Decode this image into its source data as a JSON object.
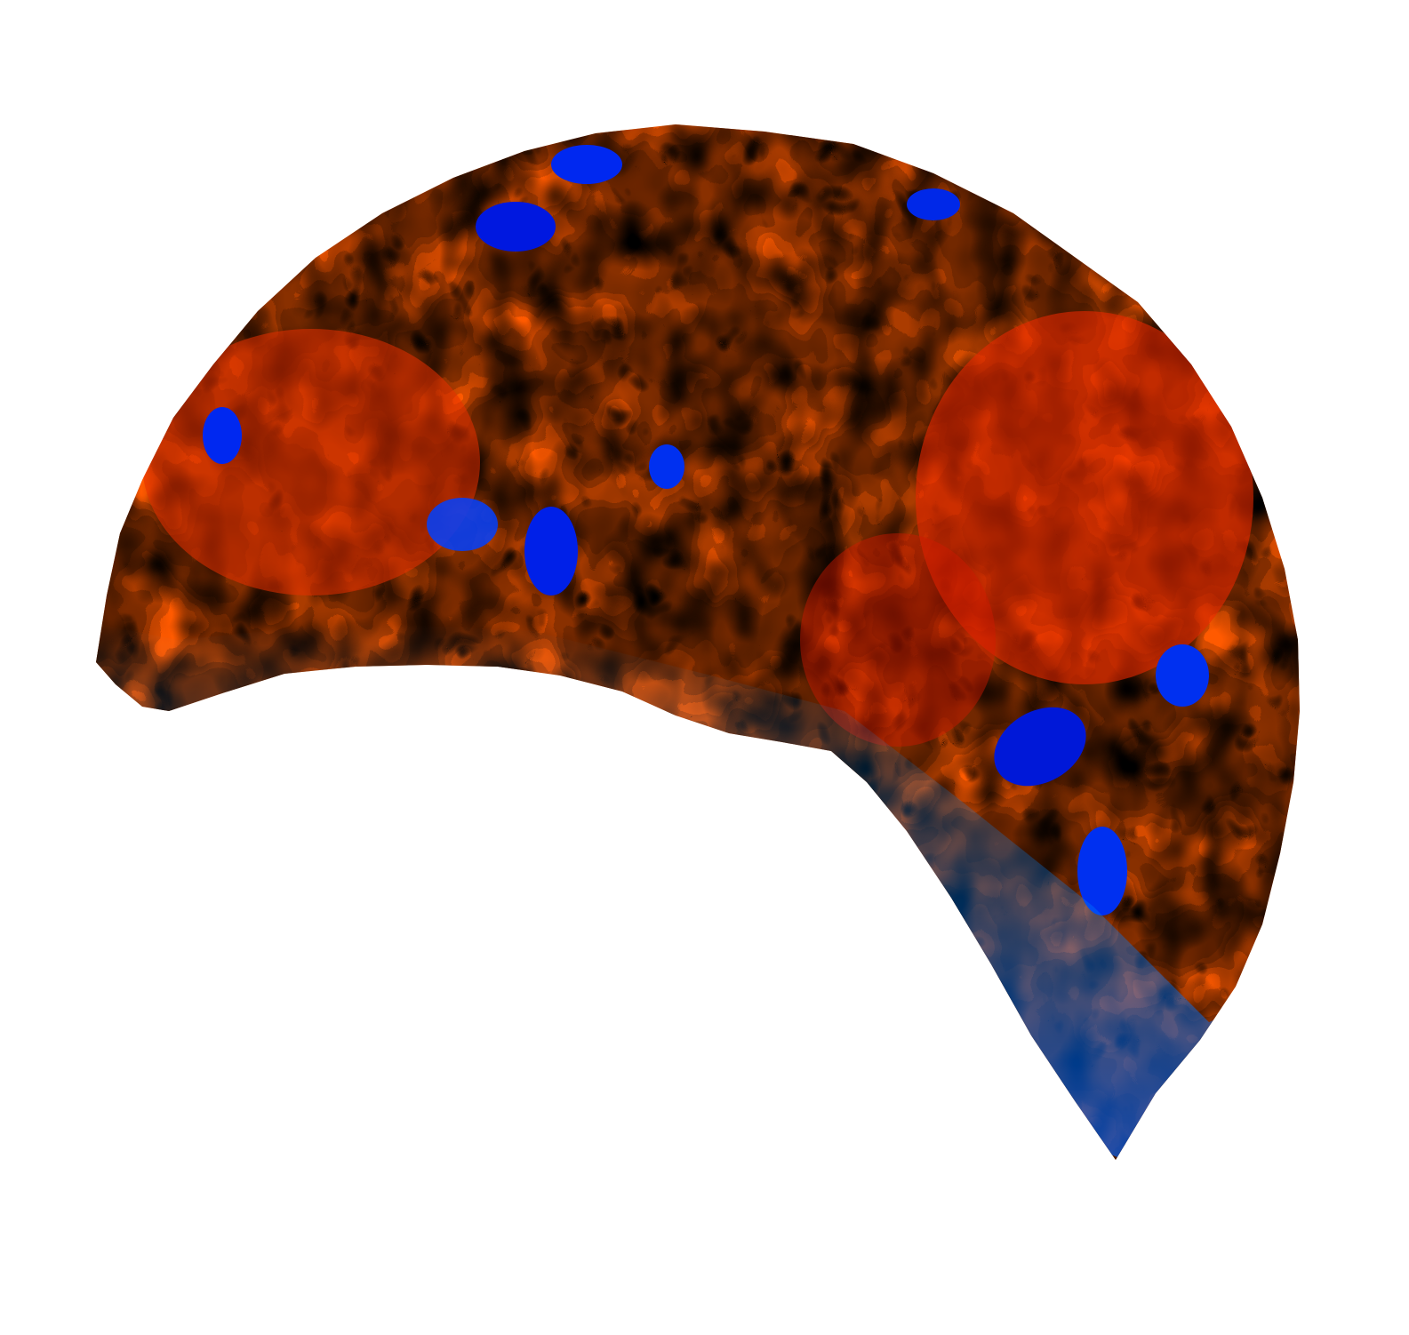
{
  "image": {
    "subject": "colormap-surface",
    "colormap": "jet",
    "background_color": "#ffffff",
    "palette": [
      "#00008f",
      "#0040ff",
      "#00a0ff",
      "#00ffff",
      "#80ff80",
      "#ffff00",
      "#ff9000",
      "#ff3000",
      "#b00000"
    ]
  }
}
